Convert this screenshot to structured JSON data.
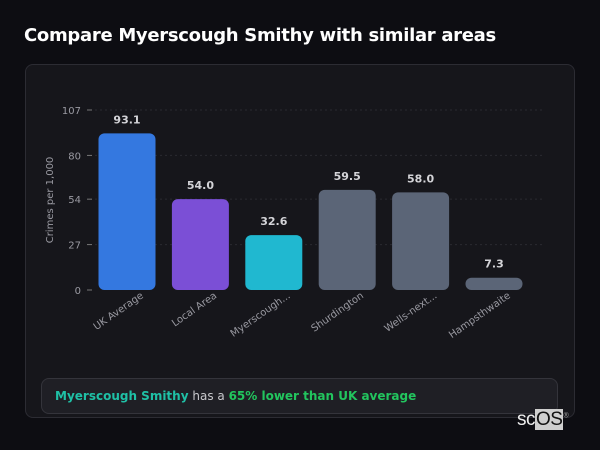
{
  "header": {
    "title": "Compare Myerscough Smithy with similar areas"
  },
  "chart_data": {
    "type": "bar",
    "title": "",
    "ylabel": "Crimes per 1,000",
    "xlabel": "",
    "ylim": [
      0,
      107
    ],
    "yticks": [
      0,
      27,
      54,
      80,
      107
    ],
    "grid": true,
    "categories": [
      "UK Average",
      "Local Area",
      "Myerscough...",
      "Shurdington",
      "Wells-next...",
      "Hampsthwaite"
    ],
    "values": [
      93.1,
      54.0,
      32.6,
      59.5,
      58.0,
      7.3
    ],
    "value_labels": [
      "93.1",
      "54.0",
      "32.6",
      "59.5",
      "58.0",
      "7.3"
    ],
    "colors": [
      "#3478e0",
      "#7b4fd6",
      "#20b8d0",
      "#5b6577",
      "#5b6577",
      "#5b6577"
    ]
  },
  "summary": {
    "area": "Myerscough Smithy",
    "middle": " has a ",
    "comparison": "65% lower than UK average"
  },
  "logo": {
    "text": "scOS"
  }
}
